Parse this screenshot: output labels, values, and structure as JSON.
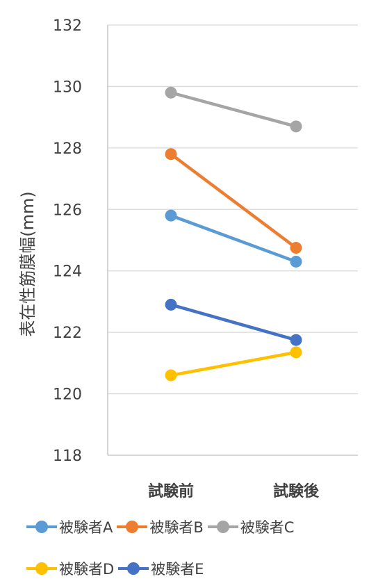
{
  "chart_data": {
    "type": "line",
    "categories": [
      "試験前",
      "試験後"
    ],
    "ylabel": "表在性筋膜幅(mm)",
    "ylim": [
      118,
      132
    ],
    "yticks": [
      118,
      120,
      122,
      124,
      126,
      128,
      130,
      132
    ],
    "grid": true,
    "legend_position": "bottom",
    "series": [
      {
        "name": "被験者A",
        "color": "#5B9BD5",
        "values": [
          125.8,
          124.3
        ]
      },
      {
        "name": "被験者B",
        "color": "#ED7D31",
        "values": [
          127.8,
          124.75
        ]
      },
      {
        "name": "被験者C",
        "color": "#A5A5A5",
        "values": [
          129.8,
          128.7
        ]
      },
      {
        "name": "被験者D",
        "color": "#FFC000",
        "values": [
          120.6,
          121.35
        ]
      },
      {
        "name": "被験者E",
        "color": "#4472C4",
        "values": [
          122.9,
          121.75
        ]
      }
    ]
  }
}
